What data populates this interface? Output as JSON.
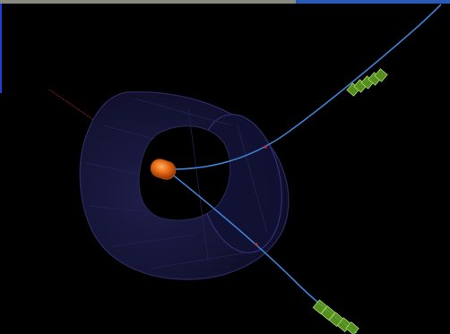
{
  "colors": {
    "background": "#000000",
    "top_bar_left": "#8a8a80",
    "top_bar_right": "#2a5ab8",
    "left_edge": "#1f3fd0",
    "detector_fill": "#15153a",
    "detector_edge": "#2b2b66",
    "track": "#3f7fcf",
    "vertex": "#e0620f",
    "hit": "#6fae2a",
    "axis": "#8a1a1a"
  },
  "icons": {
    "detector": "detector-cylinder-icon",
    "vertex": "vertex-icon",
    "hit": "hit-cluster-icon"
  }
}
